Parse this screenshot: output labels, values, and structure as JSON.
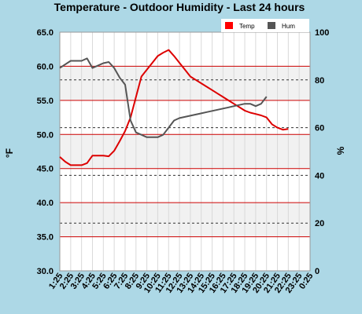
{
  "chart_data": {
    "type": "line",
    "title": "Temperature - Outdoor Humidity - Last 24 hours",
    "ylabel_left": "°F",
    "ylabel_right": "%",
    "x": [
      "1:25",
      "2:25",
      "3:25",
      "4:25",
      "5:25",
      "6:25",
      "7:25",
      "8:25",
      "9:25",
      "10:25",
      "11:25",
      "12:25",
      "13:25",
      "14:25",
      "15:25",
      "16:25",
      "17:25",
      "18:25",
      "19:25",
      "20:25",
      "21:25",
      "22:25",
      "23:25",
      "0:25"
    ],
    "y_left": {
      "min": 30.0,
      "max": 65.0,
      "ticks": [
        "30.0",
        "35.0",
        "40.0",
        "45.0",
        "50.0",
        "55.0",
        "60.0",
        "65.0"
      ]
    },
    "y_right": {
      "min": 0,
      "max": 100,
      "ticks": [
        "0",
        "20",
        "40",
        "60",
        "80",
        "100"
      ]
    },
    "series": [
      {
        "name": "Temp",
        "axis": "left",
        "color": "#dd0000",
        "points": [
          [
            0,
            46.7
          ],
          [
            0.5,
            46.0
          ],
          [
            1,
            45.5
          ],
          [
            1.5,
            45.5
          ],
          [
            2,
            45.5
          ],
          [
            2.5,
            45.8
          ],
          [
            3,
            46.9
          ],
          [
            4,
            46.9
          ],
          [
            4.5,
            46.8
          ],
          [
            5,
            47.6
          ],
          [
            5.5,
            49.0
          ],
          [
            6,
            50.5
          ],
          [
            6.5,
            52.5
          ],
          [
            7,
            55.5
          ],
          [
            7.5,
            58.5
          ],
          [
            8,
            59.5
          ],
          [
            8.5,
            60.5
          ],
          [
            9,
            61.5
          ],
          [
            9.5,
            62.0
          ],
          [
            10,
            62.4
          ],
          [
            10.5,
            61.5
          ],
          [
            11,
            60.5
          ],
          [
            11.5,
            59.5
          ],
          [
            12,
            58.5
          ],
          [
            12.5,
            58.0
          ],
          [
            13,
            57.5
          ],
          [
            13.5,
            57.0
          ],
          [
            14,
            56.5
          ],
          [
            14.5,
            56.0
          ],
          [
            15,
            55.5
          ],
          [
            15.5,
            55.0
          ],
          [
            16,
            54.5
          ],
          [
            16.5,
            54.0
          ],
          [
            17,
            53.5
          ],
          [
            17.5,
            53.2
          ],
          [
            18,
            53.0
          ],
          [
            18.5,
            52.8
          ],
          [
            19,
            52.5
          ],
          [
            19.5,
            51.5
          ],
          [
            20,
            51.0
          ],
          [
            20.5,
            50.7
          ],
          [
            21,
            50.8
          ]
        ]
      },
      {
        "name": "Hum",
        "axis": "right",
        "color": "#555555",
        "points": [
          [
            0,
            85.0
          ],
          [
            1,
            88.0
          ],
          [
            2,
            88.0
          ],
          [
            2.5,
            89.0
          ],
          [
            3,
            85.0
          ],
          [
            4,
            87.0
          ],
          [
            4.5,
            87.5
          ],
          [
            5,
            85.0
          ],
          [
            5.5,
            81.0
          ],
          [
            6,
            78.0
          ],
          [
            6.5,
            63.0
          ],
          [
            7,
            58.0
          ],
          [
            7.5,
            57.0
          ],
          [
            8,
            56.0
          ],
          [
            8.5,
            56.0
          ],
          [
            9,
            56.0
          ],
          [
            9.5,
            57.0
          ],
          [
            10,
            60.0
          ],
          [
            10.5,
            63.0
          ],
          [
            11,
            64.0
          ],
          [
            11.5,
            64.5
          ],
          [
            12,
            65.0
          ],
          [
            12.5,
            65.5
          ],
          [
            13,
            66.0
          ],
          [
            13.5,
            66.5
          ],
          [
            14,
            67.0
          ],
          [
            14.5,
            67.5
          ],
          [
            15,
            68.0
          ],
          [
            15.5,
            68.5
          ],
          [
            16,
            69.0
          ],
          [
            16.5,
            69.5
          ],
          [
            17,
            70.0
          ],
          [
            17.5,
            70.0
          ],
          [
            18,
            69.0
          ],
          [
            18.5,
            70.0
          ],
          [
            19,
            73.0
          ]
        ]
      }
    ],
    "legend": {
      "placement": "top-right",
      "items": [
        {
          "label": "Temp",
          "color": "#ff0000"
        },
        {
          "label": "Hum",
          "color": "#555555"
        }
      ]
    },
    "grid": true
  }
}
